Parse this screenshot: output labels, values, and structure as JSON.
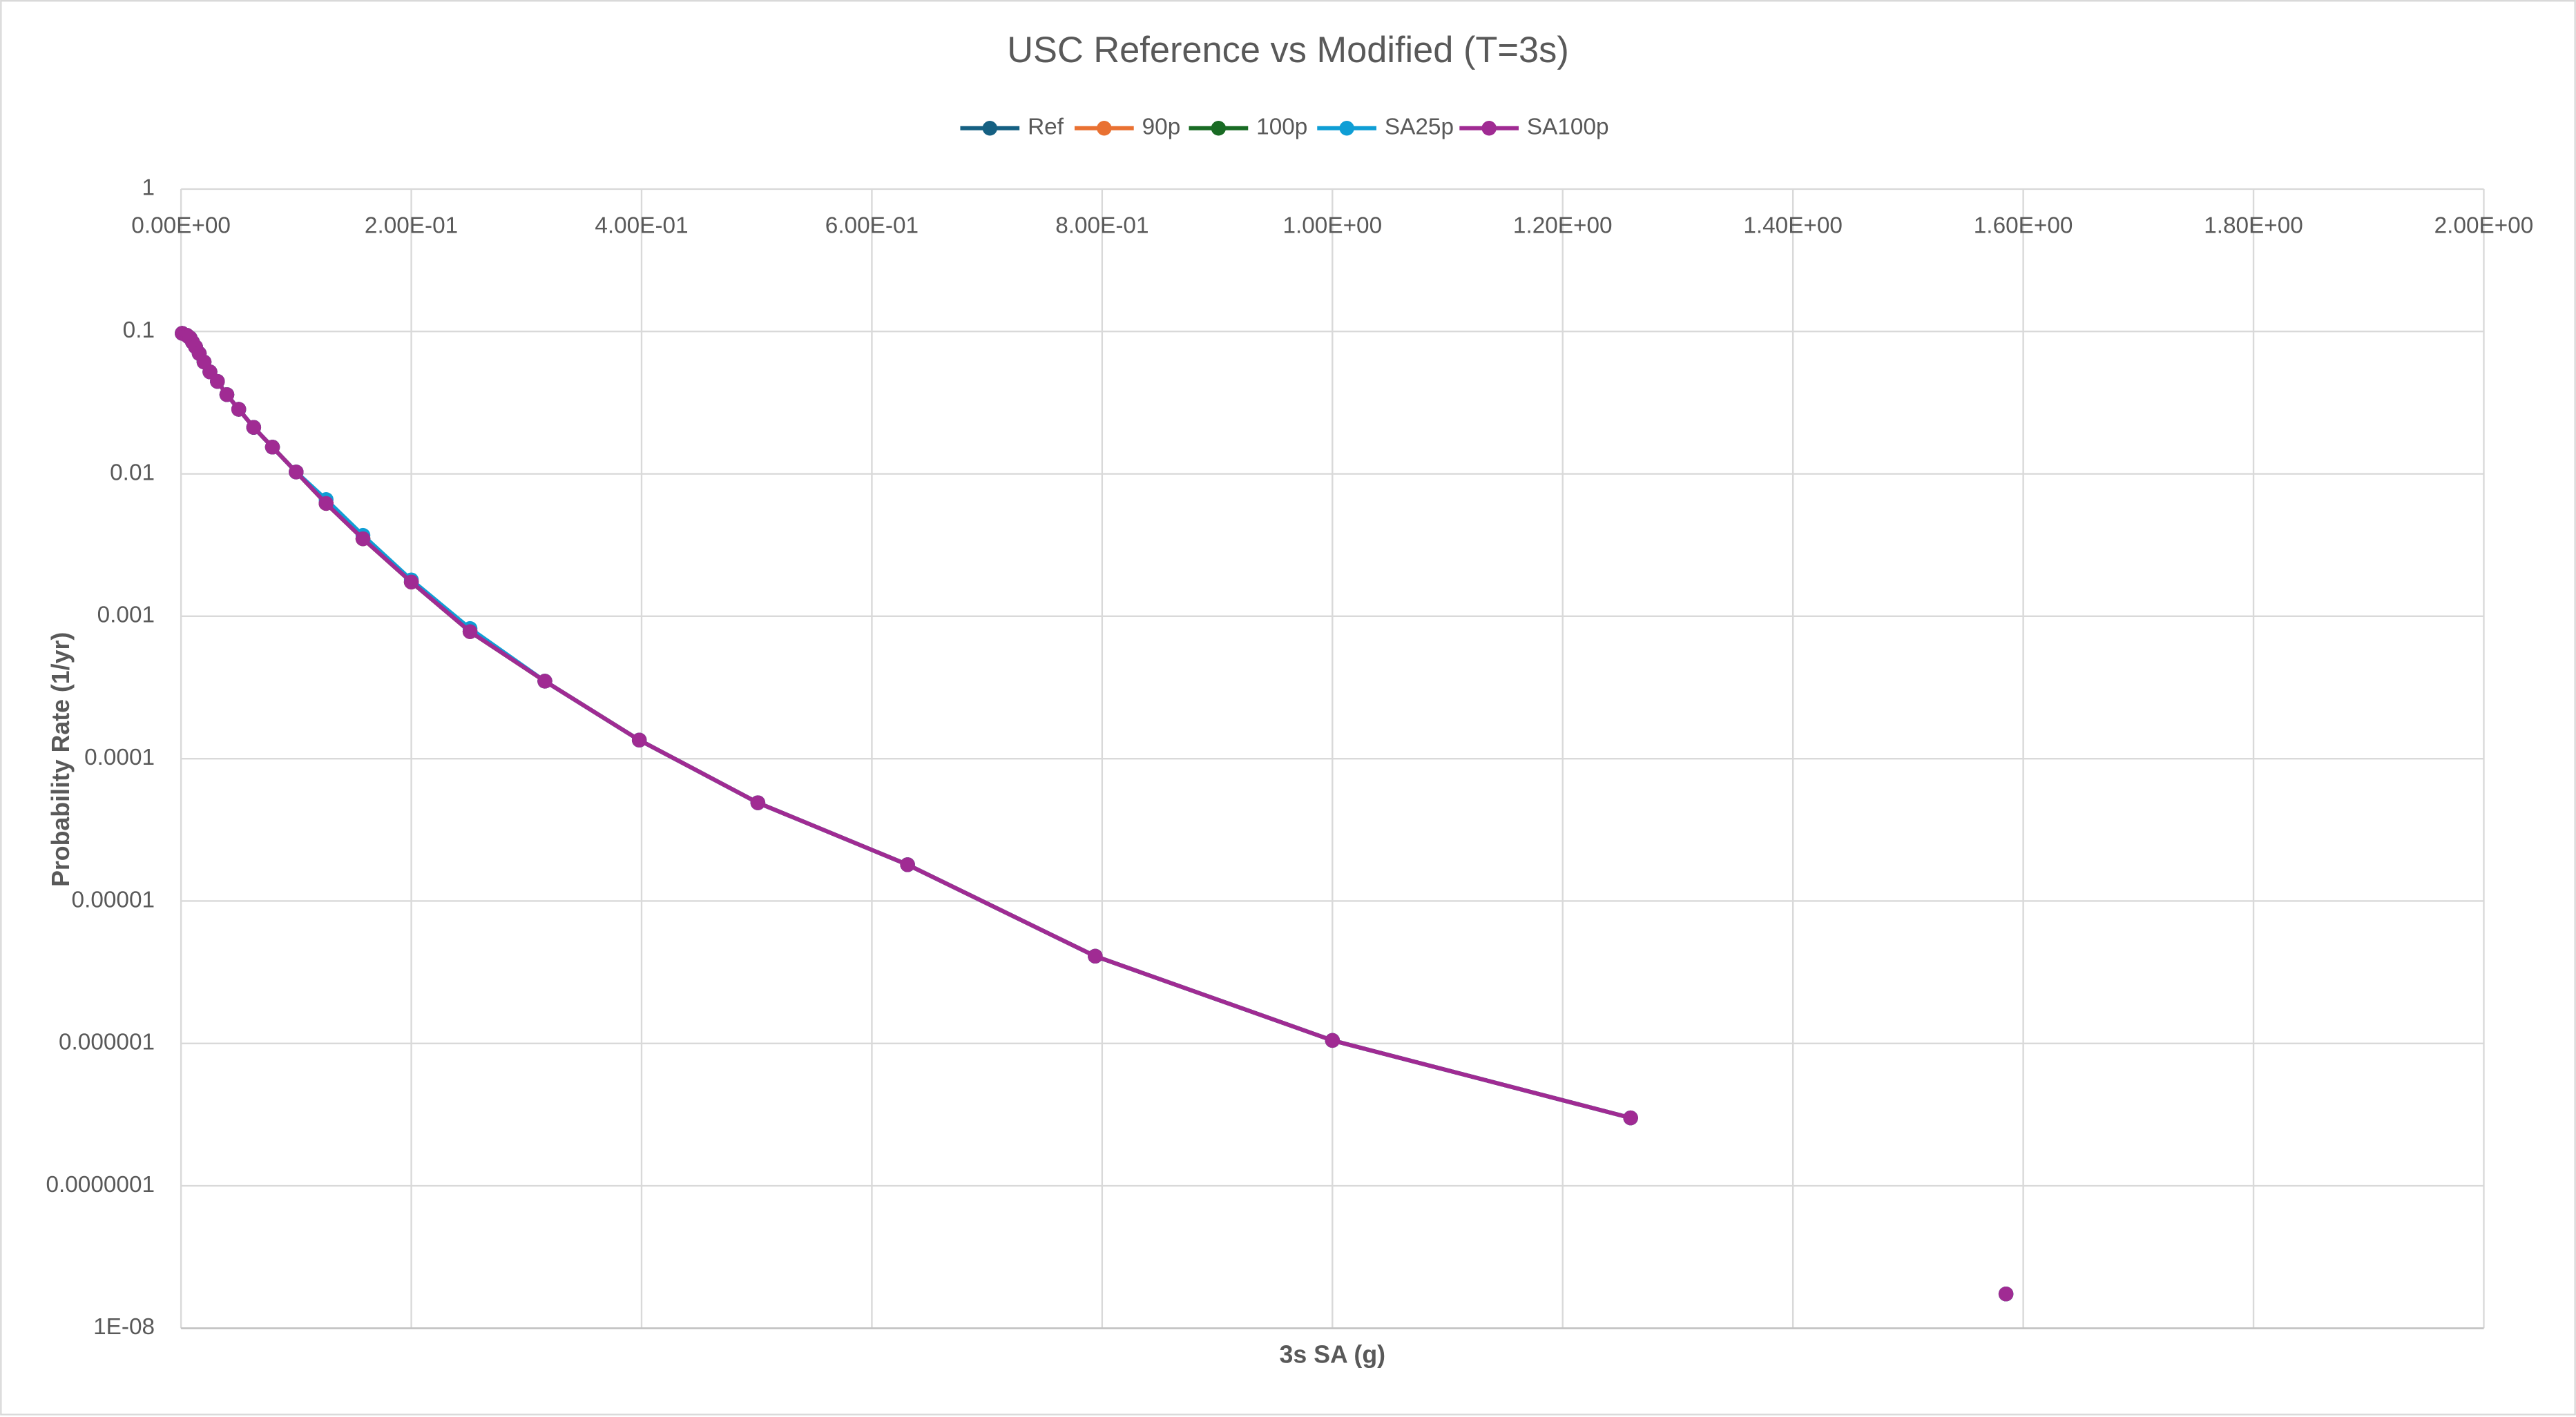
{
  "chart_data": {
    "type": "line",
    "title": "USC Reference vs Modified (T=3s)",
    "x_label": "3s SA (g)",
    "y_label": "Probability Rate (1/yr)",
    "x": [
      0.001,
      0.005,
      0.0063,
      0.0079,
      0.01,
      0.0126,
      0.0158,
      0.02,
      0.0251,
      0.0316,
      0.0398,
      0.0501,
      0.0631,
      0.0794,
      0.1,
      0.126,
      0.158,
      0.2,
      0.251,
      0.316,
      0.398,
      0.501,
      0.631,
      0.794,
      1,
      1.259,
      1.413,
      1.585
    ],
    "series": [
      {
        "name": "Ref",
        "color": "#156082",
        "values": [
          0.097,
          0.094,
          0.092,
          0.09,
          0.084,
          0.078,
          0.07,
          0.061,
          0.052,
          0.0446,
          0.036,
          0.0284,
          0.0212,
          0.0154,
          0.0103,
          0.0062,
          0.0035,
          0.00174,
          0.00078,
          0.00035,
          0.000135,
          4.9e-05,
          1.8e-05,
          4.1e-06,
          1.05e-06,
          3e-07,
          null,
          1.74e-08
        ]
      },
      {
        "name": "90p",
        "color": "#e97132",
        "values": [
          0.097,
          0.094,
          0.092,
          0.09,
          0.084,
          0.078,
          0.07,
          0.061,
          0.052,
          0.0446,
          0.036,
          0.0284,
          0.0212,
          0.0154,
          0.0103,
          0.0062,
          0.0035,
          0.00174,
          0.00078,
          0.00035,
          0.000135,
          4.9e-05,
          1.8e-05,
          4.1e-06,
          1.05e-06,
          3e-07,
          null,
          1.74e-08
        ]
      },
      {
        "name": "100p",
        "color": "#196b24",
        "values": [
          0.097,
          0.094,
          0.092,
          0.09,
          0.084,
          0.078,
          0.07,
          0.061,
          0.052,
          0.0446,
          0.036,
          0.0284,
          0.0212,
          0.0154,
          0.0103,
          0.0062,
          0.0035,
          0.00174,
          0.00078,
          0.00035,
          0.000135,
          4.9e-05,
          1.8e-05,
          4.1e-06,
          1.05e-06,
          3e-07,
          null,
          1.74e-08
        ]
      },
      {
        "name": "SA25p",
        "color": "#0f9ed5",
        "values": [
          0.097,
          0.094,
          0.092,
          0.09,
          0.084,
          0.078,
          0.07,
          0.061,
          0.052,
          0.0446,
          0.036,
          0.0284,
          0.0212,
          0.0154,
          0.0103,
          0.0066,
          0.0037,
          0.0018,
          0.00082,
          0.00035,
          0.000135,
          4.9e-05,
          1.8e-05,
          4.1e-06,
          1.05e-06,
          3e-07,
          null,
          1.74e-08
        ]
      },
      {
        "name": "SA100p",
        "color": "#a02b93",
        "values": [
          0.097,
          0.094,
          0.092,
          0.09,
          0.084,
          0.078,
          0.07,
          0.061,
          0.052,
          0.0446,
          0.036,
          0.0284,
          0.0212,
          0.0154,
          0.0103,
          0.0062,
          0.0035,
          0.00174,
          0.00078,
          0.00035,
          0.000135,
          4.9e-05,
          1.8e-05,
          4.1e-06,
          1.05e-06,
          3e-07,
          null,
          1.74e-08
        ]
      }
    ],
    "xlim": [
      0,
      2
    ],
    "xticks": [
      {
        "value": 0,
        "label": "0.00E+00"
      },
      {
        "value": 0.2,
        "label": "2.00E-01"
      },
      {
        "value": 0.4,
        "label": "4.00E-01"
      },
      {
        "value": 0.6,
        "label": "6.00E-01"
      },
      {
        "value": 0.8,
        "label": "8.00E-01"
      },
      {
        "value": 1,
        "label": "1.00E+00"
      },
      {
        "value": 1.2,
        "label": "1.20E+00"
      },
      {
        "value": 1.4,
        "label": "1.40E+00"
      },
      {
        "value": 1.6,
        "label": "1.60E+00"
      },
      {
        "value": 1.8,
        "label": "1.80E+00"
      },
      {
        "value": 2,
        "label": "2.00E+00"
      }
    ],
    "ylim": [
      1e-08,
      1
    ],
    "yticks": [
      1,
      0.1,
      0.01,
      0.001,
      0.0001,
      1e-05,
      1e-06,
      {
        "value": 1e-07,
        "label": "0.0000001"
      },
      {
        "value": 1e-08,
        "label": "1E-08"
      }
    ],
    "yscale": "log",
    "grid": true,
    "legend": "top"
  }
}
